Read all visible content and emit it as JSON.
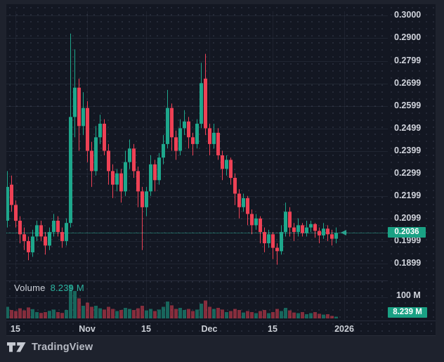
{
  "branding": {
    "logo_icon": "tradingview-logo-icon",
    "logo_text": "TradingView"
  },
  "colors": {
    "up": "#1ea78c",
    "down": "#ee4155",
    "volume_up": "rgba(30,167,140,0.55)",
    "volume_down": "rgba(238,65,85,0.52)",
    "badge": "#1aa184",
    "price_line": "#2aa38f",
    "up_bright": "#2cb3a0",
    "page_background": "#1e222d",
    "chart_background": "#131722"
  },
  "price_scale": {
    "ticks": [
      {
        "label": "0.3000",
        "value": 0.3
      },
      {
        "label": "0.2900",
        "value": 0.29
      },
      {
        "label": "0.2799",
        "value": 0.2799
      },
      {
        "label": "0.2699",
        "value": 0.2699
      },
      {
        "label": "0.2599",
        "value": 0.2599
      },
      {
        "label": "0.2499",
        "value": 0.2499
      },
      {
        "label": "0.2399",
        "value": 0.2399
      },
      {
        "label": "0.2299",
        "value": 0.2299
      },
      {
        "label": "0.2199",
        "value": 0.2199
      },
      {
        "label": "0.2099",
        "value": 0.2099
      },
      {
        "label": "0.1999",
        "value": 0.1999
      },
      {
        "label": "0.1899",
        "value": 0.1899
      }
    ],
    "last_price_badge": "0.2036"
  },
  "volume_pane": {
    "legend_label": "Volume",
    "legend_value": "8.239 M",
    "scale_label": "100 M",
    "value_badge": "8.239 M"
  },
  "chart_data": {
    "type": "candlestick_with_volume",
    "legend_position": "volume pane top-left",
    "grid": "dotted",
    "y_axis_range": [
      0.186,
      0.305
    ],
    "price_line_value": 0.2036,
    "last_close": 0.2036,
    "current_volume_m": 8.239,
    "volume_axis_tick_m": 100,
    "time_ticks": [
      {
        "label": "15",
        "index": 2
      },
      {
        "label": "Nov",
        "index": 19
      },
      {
        "label": "15",
        "index": 33
      },
      {
        "label": "Dec",
        "index": 48
      },
      {
        "label": "15",
        "index": 63
      },
      {
        "label": "2026",
        "index": 80
      }
    ],
    "candles_ohlc": [
      [
        0.209,
        0.231,
        0.206,
        0.224
      ],
      [
        0.225,
        0.229,
        0.213,
        0.216
      ],
      [
        0.216,
        0.218,
        0.206,
        0.209
      ],
      [
        0.209,
        0.211,
        0.199,
        0.203
      ],
      [
        0.203,
        0.206,
        0.196,
        0.2
      ],
      [
        0.2,
        0.202,
        0.1915,
        0.195
      ],
      [
        0.195,
        0.205,
        0.193,
        0.202
      ],
      [
        0.202,
        0.209,
        0.2,
        0.207
      ],
      [
        0.207,
        0.209,
        0.2,
        0.202
      ],
      [
        0.202,
        0.204,
        0.194,
        0.198
      ],
      [
        0.198,
        0.206,
        0.196,
        0.204
      ],
      [
        0.204,
        0.212,
        0.202,
        0.209
      ],
      [
        0.209,
        0.211,
        0.202,
        0.204
      ],
      [
        0.204,
        0.206,
        0.197,
        0.2
      ],
      [
        0.2,
        0.21,
        0.198,
        0.208
      ],
      [
        0.208,
        0.292,
        0.206,
        0.255
      ],
      [
        0.255,
        0.285,
        0.246,
        0.268
      ],
      [
        0.268,
        0.272,
        0.24,
        0.251
      ],
      [
        0.251,
        0.266,
        0.247,
        0.259
      ],
      [
        0.259,
        0.262,
        0.235,
        0.24
      ],
      [
        0.24,
        0.244,
        0.224,
        0.231
      ],
      [
        0.231,
        0.251,
        0.229,
        0.246
      ],
      [
        0.246,
        0.256,
        0.243,
        0.252
      ],
      [
        0.252,
        0.254,
        0.238,
        0.24
      ],
      [
        0.24,
        0.243,
        0.225,
        0.231
      ],
      [
        0.231,
        0.234,
        0.219,
        0.225
      ],
      [
        0.225,
        0.232,
        0.222,
        0.23
      ],
      [
        0.23,
        0.232,
        0.217,
        0.222
      ],
      [
        0.222,
        0.24,
        0.22,
        0.235
      ],
      [
        0.235,
        0.245,
        0.232,
        0.241
      ],
      [
        0.241,
        0.243,
        0.228,
        0.231
      ],
      [
        0.231,
        0.233,
        0.215,
        0.222
      ],
      [
        0.222,
        0.224,
        0.196,
        0.215
      ],
      [
        0.215,
        0.224,
        0.211,
        0.222
      ],
      [
        0.222,
        0.238,
        0.22,
        0.234
      ],
      [
        0.234,
        0.236,
        0.222,
        0.227
      ],
      [
        0.227,
        0.239,
        0.225,
        0.237
      ],
      [
        0.237,
        0.247,
        0.234,
        0.243
      ],
      [
        0.243,
        0.267,
        0.241,
        0.259
      ],
      [
        0.259,
        0.261,
        0.24,
        0.246
      ],
      [
        0.246,
        0.249,
        0.236,
        0.24
      ],
      [
        0.24,
        0.254,
        0.238,
        0.25
      ],
      [
        0.25,
        0.258,
        0.247,
        0.253
      ],
      [
        0.253,
        0.255,
        0.241,
        0.246
      ],
      [
        0.246,
        0.248,
        0.238,
        0.243
      ],
      [
        0.243,
        0.254,
        0.241,
        0.252
      ],
      [
        0.252,
        0.279,
        0.25,
        0.27
      ],
      [
        0.272,
        0.283,
        0.247,
        0.25
      ],
      [
        0.25,
        0.252,
        0.238,
        0.243
      ],
      [
        0.243,
        0.252,
        0.241,
        0.248
      ],
      [
        0.248,
        0.25,
        0.236,
        0.238
      ],
      [
        0.238,
        0.24,
        0.227,
        0.232
      ],
      [
        0.232,
        0.238,
        0.229,
        0.236
      ],
      [
        0.236,
        0.237,
        0.225,
        0.228
      ],
      [
        0.228,
        0.23,
        0.216,
        0.221
      ],
      [
        0.221,
        0.223,
        0.21,
        0.215
      ],
      [
        0.215,
        0.221,
        0.213,
        0.219
      ],
      [
        0.219,
        0.22,
        0.207,
        0.212
      ],
      [
        0.212,
        0.214,
        0.203,
        0.207
      ],
      [
        0.207,
        0.212,
        0.205,
        0.21
      ],
      [
        0.21,
        0.211,
        0.199,
        0.204
      ],
      [
        0.204,
        0.206,
        0.195,
        0.199
      ],
      [
        0.199,
        0.205,
        0.197,
        0.203
      ],
      [
        0.203,
        0.204,
        0.192,
        0.197
      ],
      [
        0.197,
        0.199,
        0.1895,
        0.1955
      ],
      [
        0.1955,
        0.207,
        0.194,
        0.204
      ],
      [
        0.204,
        0.217,
        0.202,
        0.213
      ],
      [
        0.213,
        0.215,
        0.202,
        0.206
      ],
      [
        0.206,
        0.208,
        0.2,
        0.204
      ],
      [
        0.204,
        0.21,
        0.202,
        0.207
      ],
      [
        0.207,
        0.208,
        0.202,
        0.2035
      ],
      [
        0.2035,
        0.209,
        0.202,
        0.206
      ],
      [
        0.206,
        0.209,
        0.204,
        0.2075
      ],
      [
        0.2075,
        0.208,
        0.2015,
        0.2045
      ],
      [
        0.2045,
        0.206,
        0.199,
        0.2025
      ],
      [
        0.2025,
        0.208,
        0.201,
        0.2055
      ],
      [
        0.2055,
        0.207,
        0.2,
        0.203
      ],
      [
        0.203,
        0.205,
        0.198,
        0.201
      ],
      [
        0.201,
        0.206,
        0.199,
        0.2036
      ]
    ],
    "volume_m": [
      55,
      40,
      35,
      48,
      38,
      52,
      44,
      30,
      26,
      30,
      36,
      42,
      30,
      26,
      40,
      160,
      130,
      95,
      60,
      75,
      55,
      60,
      48,
      42,
      55,
      45,
      35,
      40,
      50,
      45,
      40,
      48,
      60,
      38,
      45,
      35,
      42,
      55,
      80,
      62,
      45,
      50,
      40,
      45,
      35,
      42,
      70,
      85,
      55,
      45,
      50,
      42,
      30,
      35,
      45,
      40,
      28,
      35,
      30,
      25,
      35,
      40,
      25,
      30,
      45,
      35,
      50,
      38,
      28,
      25,
      30,
      20,
      25,
      30,
      22,
      18,
      20,
      12,
      8.239
    ]
  }
}
